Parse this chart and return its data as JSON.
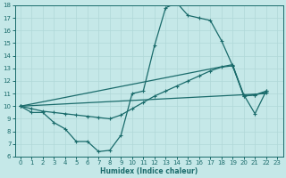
{
  "xlabel": "Humidex (Indice chaleur)",
  "ylabel": "",
  "xlim": [
    -0.5,
    23.5
  ],
  "ylim": [
    6,
    18
  ],
  "xticks": [
    0,
    1,
    2,
    3,
    4,
    5,
    6,
    7,
    8,
    9,
    10,
    11,
    12,
    13,
    14,
    15,
    16,
    17,
    18,
    19,
    20,
    21,
    22,
    23
  ],
  "yticks": [
    6,
    7,
    8,
    9,
    10,
    11,
    12,
    13,
    14,
    15,
    16,
    17,
    18
  ],
  "bg_color": "#c5e8e8",
  "line_color": "#1a6b6b",
  "grid_color": "#b0d8d8",
  "series": [
    {
      "x": [
        0,
        1,
        2,
        3,
        4,
        5,
        6,
        7,
        8,
        9,
        10,
        11,
        12,
        13,
        14,
        15,
        16,
        17,
        18,
        19,
        20,
        21,
        22
      ],
      "y": [
        10,
        9.5,
        9.5,
        8.7,
        8.2,
        7.2,
        7.2,
        6.4,
        6.5,
        7.7,
        11.0,
        11.2,
        14.8,
        17.8,
        18.2,
        17.2,
        17.0,
        16.8,
        15.2,
        13.2,
        10.9,
        9.4,
        11.2
      ],
      "marker": "+",
      "markersize": 3.5,
      "linewidth": 0.9
    },
    {
      "x": [
        0,
        1,
        2,
        3,
        4,
        5,
        6,
        7,
        8,
        9,
        10,
        11,
        12,
        13,
        14,
        15,
        16,
        17,
        18,
        19,
        20,
        21,
        22
      ],
      "y": [
        10.0,
        9.8,
        9.6,
        9.5,
        9.4,
        9.3,
        9.2,
        9.1,
        9.0,
        9.3,
        9.8,
        10.3,
        10.8,
        11.2,
        11.6,
        12.0,
        12.4,
        12.8,
        13.1,
        13.2,
        10.8,
        10.9,
        11.1
      ],
      "marker": "+",
      "markersize": 3.5,
      "linewidth": 0.9
    },
    {
      "x": [
        0,
        19,
        20,
        21,
        22
      ],
      "y": [
        10.0,
        13.3,
        10.8,
        10.9,
        11.2
      ],
      "marker": "+",
      "markersize": 3.5,
      "linewidth": 0.9
    },
    {
      "x": [
        0,
        22
      ],
      "y": [
        10.0,
        11.0
      ],
      "marker": null,
      "markersize": 0,
      "linewidth": 0.9
    }
  ]
}
